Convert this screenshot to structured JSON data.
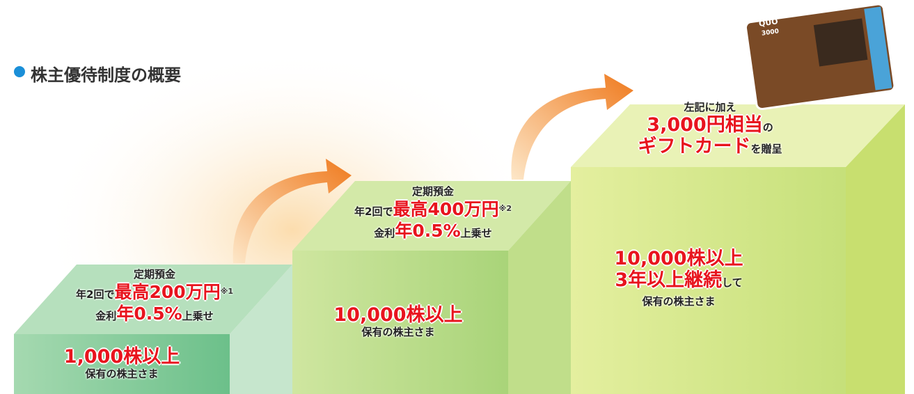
{
  "title": "株主優待制度の概要",
  "card": {
    "brand": "QUO",
    "amount": "3000"
  },
  "steps": [
    {
      "benefit": [
        [
          "定期預金"
        ],
        [
          "年2回で",
          "最高200万円",
          "※1"
        ],
        [
          "金利",
          "年0.5%",
          "上乗せ"
        ]
      ],
      "holding": [
        [
          "1,000株以上"
        ],
        [
          "保有の株主さま"
        ]
      ]
    },
    {
      "benefit": [
        [
          "定期預金"
        ],
        [
          "年2回で",
          "最高400万円",
          "※2"
        ],
        [
          "金利",
          "年0.5%",
          "上乗せ"
        ]
      ],
      "holding": [
        [
          "10,000株以上"
        ],
        [
          "保有の株主さま"
        ]
      ]
    },
    {
      "benefit": [
        [
          "左記に加え"
        ],
        [
          "3,000円相当",
          "の"
        ],
        [
          "ギフトカード",
          "を贈呈"
        ]
      ],
      "holding": [
        [
          "10,000株以上"
        ],
        [
          "3年以上継続",
          "して"
        ],
        [
          "保有の株主さま"
        ]
      ]
    }
  ]
}
